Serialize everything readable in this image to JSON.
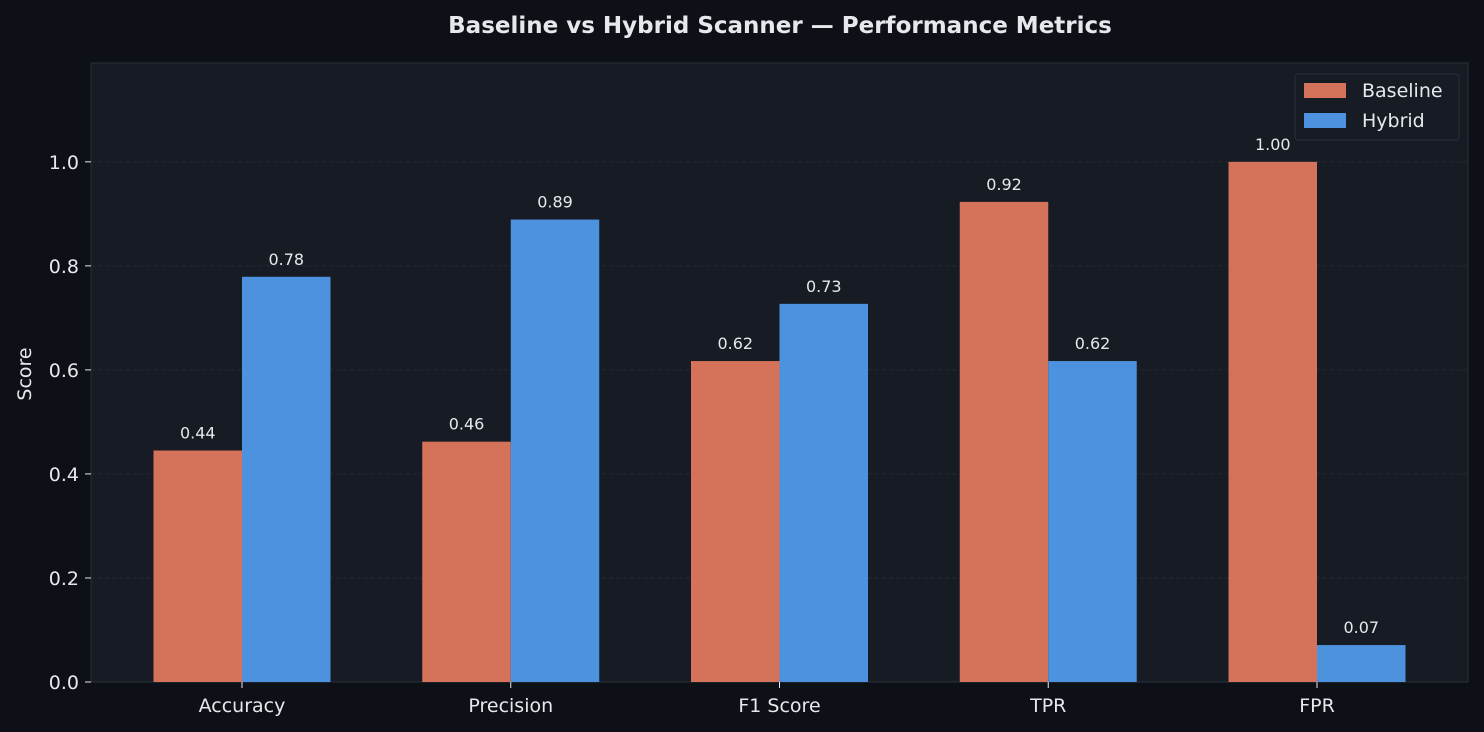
{
  "colors": {
    "page_background": "#0d1017",
    "plot_background": "#171b23",
    "text": "#e6e8ec",
    "grid": "#232833",
    "spine": "#2a2f3a"
  },
  "chart_data": {
    "type": "bar",
    "title": "Baseline vs Hybrid Scanner — Performance Metrics",
    "xlabel": "",
    "ylabel": "Score",
    "categories": [
      "Accuracy",
      "Precision",
      "F1 Score",
      "TPR",
      "FPR"
    ],
    "series": [
      {
        "name": "Baseline",
        "color": "#d4725a",
        "values": [
          0.445,
          0.462,
          0.617,
          0.923,
          1.0
        ],
        "labels": [
          "0.44",
          "0.46",
          "0.62",
          "0.92",
          "1.00"
        ]
      },
      {
        "name": "Hybrid",
        "color": "#4d92df",
        "values": [
          0.779,
          0.889,
          0.727,
          0.617,
          0.071
        ],
        "labels": [
          "0.78",
          "0.89",
          "0.73",
          "0.62",
          "0.07"
        ]
      }
    ],
    "ylim": [
      0,
      1.19
    ],
    "yticks": [
      0.0,
      0.2,
      0.4,
      0.6,
      0.8,
      1.0
    ],
    "ytick_labels": [
      "0.0",
      "0.2",
      "0.4",
      "0.6",
      "0.8",
      "1.0"
    ],
    "grid": true,
    "legend_position": "top-right"
  }
}
